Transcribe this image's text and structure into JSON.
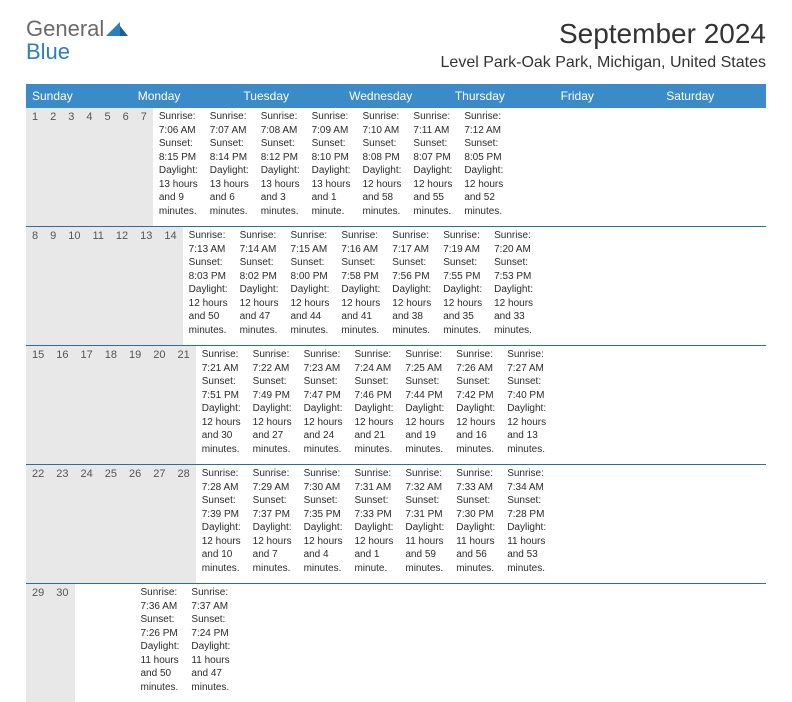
{
  "brand": {
    "general": "General",
    "blue": "Blue"
  },
  "header": {
    "month_title": "September 2024",
    "location": "Level Park-Oak Park, Michigan, United States"
  },
  "colors": {
    "header_bar": "#3b8bc9",
    "week_divider": "#2c6da3",
    "daynum_bg": "#e8e8e8",
    "logo_gray": "#6a6a6a",
    "logo_blue": "#2a7fbf"
  },
  "day_names": [
    "Sunday",
    "Monday",
    "Tuesday",
    "Wednesday",
    "Thursday",
    "Friday",
    "Saturday"
  ],
  "weeks": [
    [
      {
        "n": "1",
        "sunrise": "7:06 AM",
        "sunset": "8:15 PM",
        "daylight": "13 hours and 9 minutes."
      },
      {
        "n": "2",
        "sunrise": "7:07 AM",
        "sunset": "8:14 PM",
        "daylight": "13 hours and 6 minutes."
      },
      {
        "n": "3",
        "sunrise": "7:08 AM",
        "sunset": "8:12 PM",
        "daylight": "13 hours and 3 minutes."
      },
      {
        "n": "4",
        "sunrise": "7:09 AM",
        "sunset": "8:10 PM",
        "daylight": "13 hours and 1 minute."
      },
      {
        "n": "5",
        "sunrise": "7:10 AM",
        "sunset": "8:08 PM",
        "daylight": "12 hours and 58 minutes."
      },
      {
        "n": "6",
        "sunrise": "7:11 AM",
        "sunset": "8:07 PM",
        "daylight": "12 hours and 55 minutes."
      },
      {
        "n": "7",
        "sunrise": "7:12 AM",
        "sunset": "8:05 PM",
        "daylight": "12 hours and 52 minutes."
      }
    ],
    [
      {
        "n": "8",
        "sunrise": "7:13 AM",
        "sunset": "8:03 PM",
        "daylight": "12 hours and 50 minutes."
      },
      {
        "n": "9",
        "sunrise": "7:14 AM",
        "sunset": "8:02 PM",
        "daylight": "12 hours and 47 minutes."
      },
      {
        "n": "10",
        "sunrise": "7:15 AM",
        "sunset": "8:00 PM",
        "daylight": "12 hours and 44 minutes."
      },
      {
        "n": "11",
        "sunrise": "7:16 AM",
        "sunset": "7:58 PM",
        "daylight": "12 hours and 41 minutes."
      },
      {
        "n": "12",
        "sunrise": "7:17 AM",
        "sunset": "7:56 PM",
        "daylight": "12 hours and 38 minutes."
      },
      {
        "n": "13",
        "sunrise": "7:19 AM",
        "sunset": "7:55 PM",
        "daylight": "12 hours and 35 minutes."
      },
      {
        "n": "14",
        "sunrise": "7:20 AM",
        "sunset": "7:53 PM",
        "daylight": "12 hours and 33 minutes."
      }
    ],
    [
      {
        "n": "15",
        "sunrise": "7:21 AM",
        "sunset": "7:51 PM",
        "daylight": "12 hours and 30 minutes."
      },
      {
        "n": "16",
        "sunrise": "7:22 AM",
        "sunset": "7:49 PM",
        "daylight": "12 hours and 27 minutes."
      },
      {
        "n": "17",
        "sunrise": "7:23 AM",
        "sunset": "7:47 PM",
        "daylight": "12 hours and 24 minutes."
      },
      {
        "n": "18",
        "sunrise": "7:24 AM",
        "sunset": "7:46 PM",
        "daylight": "12 hours and 21 minutes."
      },
      {
        "n": "19",
        "sunrise": "7:25 AM",
        "sunset": "7:44 PM",
        "daylight": "12 hours and 19 minutes."
      },
      {
        "n": "20",
        "sunrise": "7:26 AM",
        "sunset": "7:42 PM",
        "daylight": "12 hours and 16 minutes."
      },
      {
        "n": "21",
        "sunrise": "7:27 AM",
        "sunset": "7:40 PM",
        "daylight": "12 hours and 13 minutes."
      }
    ],
    [
      {
        "n": "22",
        "sunrise": "7:28 AM",
        "sunset": "7:39 PM",
        "daylight": "12 hours and 10 minutes."
      },
      {
        "n": "23",
        "sunrise": "7:29 AM",
        "sunset": "7:37 PM",
        "daylight": "12 hours and 7 minutes."
      },
      {
        "n": "24",
        "sunrise": "7:30 AM",
        "sunset": "7:35 PM",
        "daylight": "12 hours and 4 minutes."
      },
      {
        "n": "25",
        "sunrise": "7:31 AM",
        "sunset": "7:33 PM",
        "daylight": "12 hours and 1 minute."
      },
      {
        "n": "26",
        "sunrise": "7:32 AM",
        "sunset": "7:31 PM",
        "daylight": "11 hours and 59 minutes."
      },
      {
        "n": "27",
        "sunrise": "7:33 AM",
        "sunset": "7:30 PM",
        "daylight": "11 hours and 56 minutes."
      },
      {
        "n": "28",
        "sunrise": "7:34 AM",
        "sunset": "7:28 PM",
        "daylight": "11 hours and 53 minutes."
      }
    ],
    [
      {
        "n": "29",
        "sunrise": "7:36 AM",
        "sunset": "7:26 PM",
        "daylight": "11 hours and 50 minutes."
      },
      {
        "n": "30",
        "sunrise": "7:37 AM",
        "sunset": "7:24 PM",
        "daylight": "11 hours and 47 minutes."
      },
      null,
      null,
      null,
      null,
      null
    ]
  ],
  "labels": {
    "sunrise": "Sunrise: ",
    "sunset": "Sunset: ",
    "daylight": "Daylight: "
  }
}
